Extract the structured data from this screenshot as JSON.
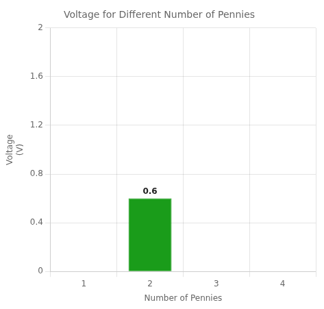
{
  "chart_data": {
    "type": "bar",
    "title": "Voltage for Different Number of Pennies",
    "xlabel": "Number of Pennies",
    "ylabel": "Voltage\n(V)",
    "categories": [
      1,
      2,
      3,
      4
    ],
    "values": [
      0,
      0.6,
      0,
      0
    ],
    "color": "#1a9c1a",
    "ylim": [
      0,
      2
    ],
    "yticks": [
      0,
      0.4,
      0.8,
      1.2,
      1.6,
      2
    ],
    "grid": true,
    "data_labels": true,
    "value_labels": [
      null,
      "0.6",
      null,
      null
    ]
  }
}
